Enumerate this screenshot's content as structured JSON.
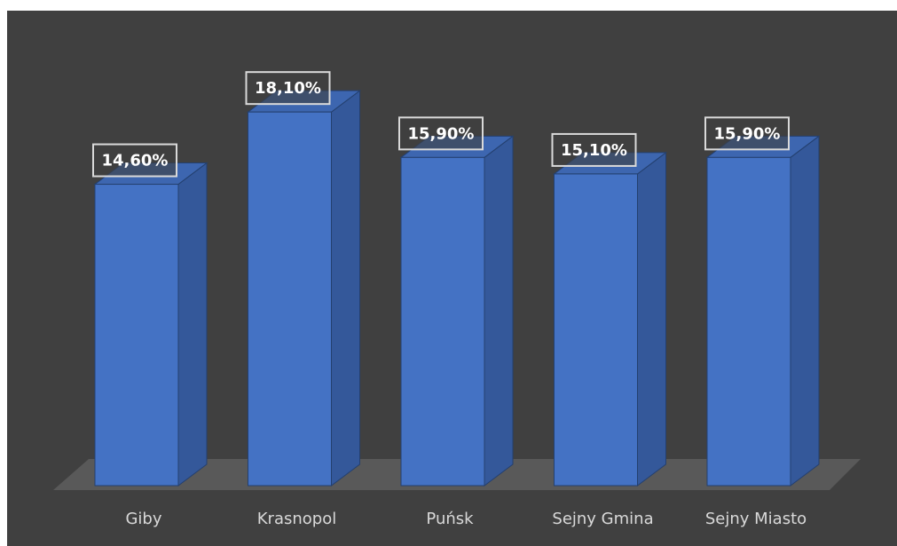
{
  "chart_data": {
    "type": "bar3d",
    "categories": [
      "Giby",
      "Krasnopol",
      "Puńsk",
      "Sejny Gmina",
      "Sejny Miasto"
    ],
    "values": [
      14.6,
      18.1,
      15.9,
      15.1,
      15.9
    ],
    "value_labels": [
      "14,60%",
      "18,10%",
      "15,90%",
      "15,10%",
      "15,90%"
    ],
    "color": "#4472c4"
  }
}
